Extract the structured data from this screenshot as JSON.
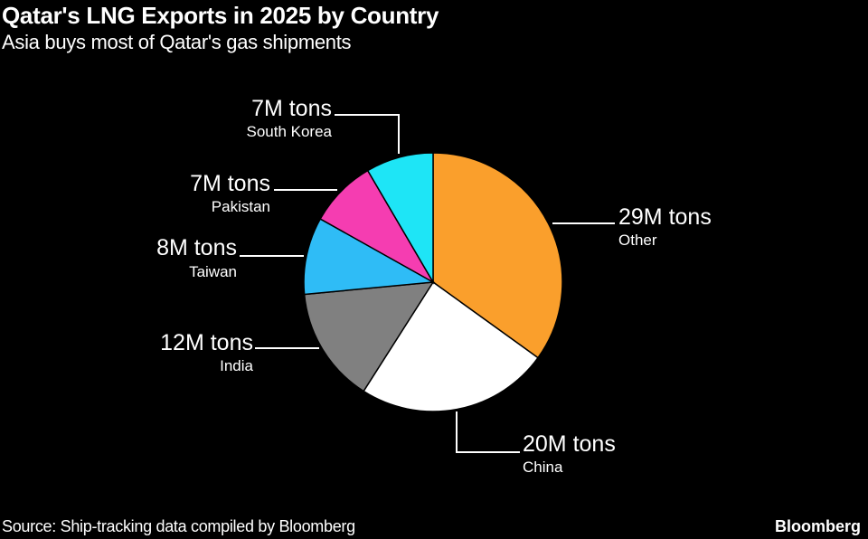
{
  "chart_data": {
    "type": "pie",
    "title": "Qatar's LNG Exports in 2025 by Country",
    "subtitle": "Asia buys most of Qatar's gas shipments",
    "unit": "M tons",
    "slices": [
      {
        "label": "Other",
        "value": 29,
        "value_label": "29M tons",
        "color": "#fa9f2c"
      },
      {
        "label": "China",
        "value": 20,
        "value_label": "20M tons",
        "color": "#ffffff"
      },
      {
        "label": "India",
        "value": 12,
        "value_label": "12M tons",
        "color": "#808080"
      },
      {
        "label": "Taiwan",
        "value": 8,
        "value_label": "8M tons",
        "color": "#2fbcf6"
      },
      {
        "label": "Pakistan",
        "value": 7,
        "value_label": "7M tons",
        "color": "#f53db1"
      },
      {
        "label": "South Korea",
        "value": 7,
        "value_label": "7M tons",
        "color": "#1ee5f6"
      }
    ],
    "start": "top",
    "direction": "clockwise"
  },
  "footer": {
    "source": "Source: Ship-tracking data compiled by Bloomberg",
    "brand": "Bloomberg"
  }
}
